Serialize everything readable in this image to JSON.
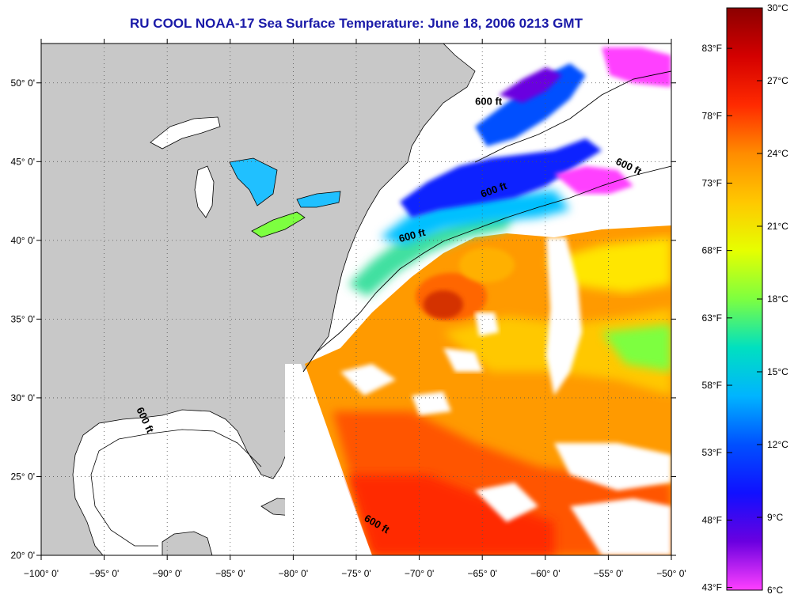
{
  "title": "RU COOL  NOAA-17  Sea Surface Temperature:  June 18, 2006 0213 GMT",
  "lat_ticks": [
    {
      "lat": 50,
      "label": "50° 0'"
    },
    {
      "lat": 45,
      "label": "45° 0'"
    },
    {
      "lat": 40,
      "label": "40° 0'"
    },
    {
      "lat": 35,
      "label": "35° 0'"
    },
    {
      "lat": 30,
      "label": "30° 0'"
    },
    {
      "lat": 25,
      "label": "25° 0'"
    },
    {
      "lat": 20,
      "label": "20° 0'"
    }
  ],
  "lon_ticks": [
    {
      "lon": -100,
      "label": "−100° 0'"
    },
    {
      "lon": -95,
      "label": "−95° 0'"
    },
    {
      "lon": -90,
      "label": "−90° 0'"
    },
    {
      "lon": -85,
      "label": "−85° 0'"
    },
    {
      "lon": -80,
      "label": "−80° 0'"
    },
    {
      "lon": -75,
      "label": "−75° 0'"
    },
    {
      "lon": -70,
      "label": "−70° 0'"
    },
    {
      "lon": -65,
      "label": "−65° 0'"
    },
    {
      "lon": -60,
      "label": "−60° 0'"
    },
    {
      "lon": -55,
      "label": "−55° 0'"
    },
    {
      "lon": -50,
      "label": "−50° 0'"
    }
  ],
  "extent": {
    "lon_min": -100,
    "lon_max": -50,
    "lat_min": 20,
    "lat_max": 52.5
  },
  "colorbar": {
    "celsius_min": 6,
    "celsius_max": 30,
    "fahrenheit_labels": [
      "83°F",
      "78°F",
      "73°F",
      "68°F",
      "63°F",
      "58°F",
      "53°F",
      "48°F",
      "43°F"
    ],
    "fahrenheit_values": [
      83,
      78,
      73,
      68,
      63,
      58,
      53,
      48,
      43
    ],
    "celsius_labels": [
      "30°C",
      "27°C",
      "24°C",
      "21°C",
      "18°C",
      "15°C",
      "12°C",
      "9°C",
      "6°C"
    ],
    "celsius_values": [
      30,
      27,
      24,
      21,
      18,
      15,
      12,
      9,
      6
    ],
    "colors": [
      "#8b0000",
      "#d40000",
      "#ff2a00",
      "#ff8c00",
      "#ffc800",
      "#e6ff00",
      "#7dff40",
      "#00e0c0",
      "#00b4ff",
      "#0050ff",
      "#1010ff",
      "#6a00e0",
      "#ff40ff"
    ]
  },
  "depth_labels": [
    {
      "text": "600 ft",
      "lon": -64.5,
      "lat": 48.6,
      "rot": 0
    },
    {
      "text": "600 ft",
      "lon": -53.5,
      "lat": 44.5,
      "rot": 25
    },
    {
      "text": "600 ft",
      "lon": -64.0,
      "lat": 43.0,
      "rot": -20
    },
    {
      "text": "600 ft",
      "lon": -70.5,
      "lat": 40.1,
      "rot": -15
    },
    {
      "text": "600 ft",
      "lon": -92.0,
      "lat": 28.5,
      "rot": 65
    },
    {
      "text": "600 ft",
      "lon": -73.5,
      "lat": 21.8,
      "rot": 30
    }
  ],
  "colors": {
    "land": "#c8c8c8",
    "ocean_unsampled": "#ffffff",
    "clouds": "#ffffff",
    "title": "#1a1aa8"
  }
}
